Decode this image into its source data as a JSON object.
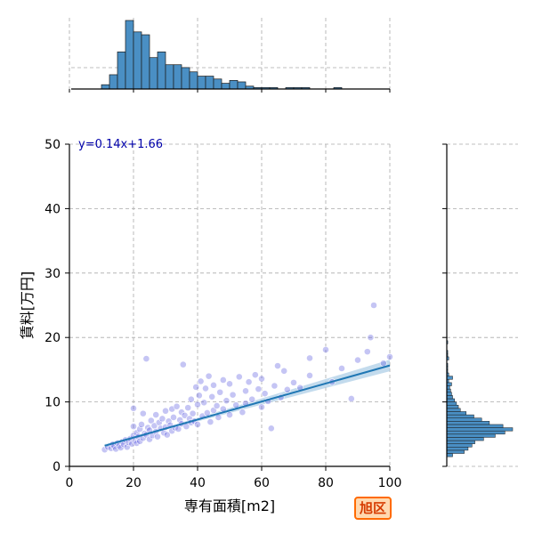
{
  "chart_data": {
    "type": "scatter",
    "xlabel": "専有面積[m2]",
    "ylabel": "賃料[万円]",
    "xlim": [
      0,
      100
    ],
    "ylim": [
      0,
      50
    ],
    "x_ticks": [
      "0",
      "20",
      "40",
      "60",
      "80",
      "100"
    ],
    "y_ticks": [
      "0",
      "10",
      "20",
      "30",
      "40",
      "50"
    ],
    "grid": true,
    "regression": {
      "label": "y=0.14x+1.66",
      "slope": 0.14,
      "intercept": 1.66,
      "x_range": [
        11,
        100
      ]
    },
    "points": [
      {
        "x": 11,
        "y": 2.6
      },
      {
        "x": 12,
        "y": 3.0
      },
      {
        "x": 13,
        "y": 2.8
      },
      {
        "x": 13.5,
        "y": 3.4
      },
      {
        "x": 14,
        "y": 3.1
      },
      {
        "x": 14.5,
        "y": 2.7
      },
      {
        "x": 15,
        "y": 3.6
      },
      {
        "x": 15.5,
        "y": 3.2
      },
      {
        "x": 16,
        "y": 2.9
      },
      {
        "x": 16.5,
        "y": 3.8
      },
      {
        "x": 17,
        "y": 3.4
      },
      {
        "x": 17.5,
        "y": 4.1
      },
      {
        "x": 18,
        "y": 3.0
      },
      {
        "x": 18.5,
        "y": 3.7
      },
      {
        "x": 19,
        "y": 4.3
      },
      {
        "x": 19.5,
        "y": 3.5
      },
      {
        "x": 20,
        "y": 4.8
      },
      {
        "x": 20,
        "y": 6.2
      },
      {
        "x": 20,
        "y": 9.0
      },
      {
        "x": 20.5,
        "y": 4.0
      },
      {
        "x": 21,
        "y": 5.2
      },
      {
        "x": 21,
        "y": 3.6
      },
      {
        "x": 21.5,
        "y": 4.6
      },
      {
        "x": 22,
        "y": 5.8
      },
      {
        "x": 22,
        "y": 3.9
      },
      {
        "x": 22.5,
        "y": 6.5
      },
      {
        "x": 23,
        "y": 4.4
      },
      {
        "x": 23,
        "y": 8.2
      },
      {
        "x": 23.5,
        "y": 5.1
      },
      {
        "x": 24,
        "y": 16.7
      },
      {
        "x": 24,
        "y": 4.9
      },
      {
        "x": 24.5,
        "y": 6.0
      },
      {
        "x": 25,
        "y": 4.2
      },
      {
        "x": 25,
        "y": 5.6
      },
      {
        "x": 25.5,
        "y": 7.1
      },
      {
        "x": 26,
        "y": 4.8
      },
      {
        "x": 26.5,
        "y": 6.3
      },
      {
        "x": 27,
        "y": 5.4
      },
      {
        "x": 27,
        "y": 8.0
      },
      {
        "x": 27.5,
        "y": 4.6
      },
      {
        "x": 28,
        "y": 6.8
      },
      {
        "x": 28.5,
        "y": 5.9
      },
      {
        "x": 29,
        "y": 7.4
      },
      {
        "x": 29.5,
        "y": 5.2
      },
      {
        "x": 30,
        "y": 6.1
      },
      {
        "x": 30,
        "y": 8.6
      },
      {
        "x": 30.5,
        "y": 4.9
      },
      {
        "x": 31,
        "y": 7.0
      },
      {
        "x": 31.5,
        "y": 6.4
      },
      {
        "x": 32,
        "y": 5.5
      },
      {
        "x": 32,
        "y": 8.9
      },
      {
        "x": 32.5,
        "y": 7.6
      },
      {
        "x": 33,
        "y": 6.0
      },
      {
        "x": 33.5,
        "y": 9.3
      },
      {
        "x": 34,
        "y": 5.8
      },
      {
        "x": 34.5,
        "y": 7.2
      },
      {
        "x": 35,
        "y": 8.4
      },
      {
        "x": 35,
        "y": 6.6
      },
      {
        "x": 35.5,
        "y": 15.8
      },
      {
        "x": 36,
        "y": 7.9
      },
      {
        "x": 36.5,
        "y": 6.2
      },
      {
        "x": 37,
        "y": 9.1
      },
      {
        "x": 37.5,
        "y": 7.4
      },
      {
        "x": 38,
        "y": 6.8
      },
      {
        "x": 38,
        "y": 10.4
      },
      {
        "x": 38.5,
        "y": 8.2
      },
      {
        "x": 39,
        "y": 7.0
      },
      {
        "x": 39.5,
        "y": 12.3
      },
      {
        "x": 40,
        "y": 9.6
      },
      {
        "x": 40,
        "y": 6.5
      },
      {
        "x": 40.5,
        "y": 11.0
      },
      {
        "x": 41,
        "y": 13.2
      },
      {
        "x": 41.5,
        "y": 7.8
      },
      {
        "x": 42,
        "y": 9.9
      },
      {
        "x": 42.5,
        "y": 12.1
      },
      {
        "x": 43,
        "y": 8.3
      },
      {
        "x": 43.5,
        "y": 14.0
      },
      {
        "x": 44,
        "y": 6.9
      },
      {
        "x": 44.5,
        "y": 10.8
      },
      {
        "x": 45,
        "y": 8.7
      },
      {
        "x": 45,
        "y": 12.6
      },
      {
        "x": 46,
        "y": 9.4
      },
      {
        "x": 46.5,
        "y": 7.6
      },
      {
        "x": 47,
        "y": 11.5
      },
      {
        "x": 48,
        "y": 8.9
      },
      {
        "x": 48,
        "y": 13.4
      },
      {
        "x": 49,
        "y": 10.2
      },
      {
        "x": 50,
        "y": 8.0
      },
      {
        "x": 50,
        "y": 12.8
      },
      {
        "x": 51,
        "y": 11.1
      },
      {
        "x": 52,
        "y": 9.5
      },
      {
        "x": 53,
        "y": 13.9
      },
      {
        "x": 54,
        "y": 8.4
      },
      {
        "x": 55,
        "y": 11.7
      },
      {
        "x": 55,
        "y": 9.8
      },
      {
        "x": 56,
        "y": 13.1
      },
      {
        "x": 57,
        "y": 10.4
      },
      {
        "x": 58,
        "y": 14.2
      },
      {
        "x": 59,
        "y": 12.0
      },
      {
        "x": 60,
        "y": 9.2
      },
      {
        "x": 60,
        "y": 13.6
      },
      {
        "x": 61,
        "y": 11.3
      },
      {
        "x": 62,
        "y": 10.1
      },
      {
        "x": 63,
        "y": 5.9
      },
      {
        "x": 64,
        "y": 12.5
      },
      {
        "x": 65,
        "y": 15.6
      },
      {
        "x": 66,
        "y": 10.7
      },
      {
        "x": 67,
        "y": 14.8
      },
      {
        "x": 68,
        "y": 11.9
      },
      {
        "x": 70,
        "y": 13.0
      },
      {
        "x": 72,
        "y": 12.2
      },
      {
        "x": 75,
        "y": 16.8
      },
      {
        "x": 75,
        "y": 14.1
      },
      {
        "x": 80,
        "y": 18.1
      },
      {
        "x": 82,
        "y": 13.1
      },
      {
        "x": 85,
        "y": 15.2
      },
      {
        "x": 88,
        "y": 10.5
      },
      {
        "x": 90,
        "y": 16.5
      },
      {
        "x": 93,
        "y": 17.8
      },
      {
        "x": 94,
        "y": 20.0
      },
      {
        "x": 95,
        "y": 25.0
      },
      {
        "x": 98,
        "y": 16.0
      },
      {
        "x": 100,
        "y": 17.0
      }
    ],
    "x_histogram": {
      "bin_start": 10,
      "bin_width": 2.5,
      "counts": [
        3,
        10,
        26,
        48,
        40,
        38,
        22,
        26,
        17,
        17,
        15,
        12,
        9,
        9,
        7,
        4,
        6,
        5,
        2,
        1,
        1,
        1,
        0,
        1,
        1,
        1,
        0,
        0,
        0,
        1
      ]
    },
    "y_histogram": {
      "bin_start": 1.5,
      "bin_width": 0.5,
      "counts": [
        6,
        18,
        22,
        26,
        29,
        38,
        50,
        60,
        68,
        58,
        44,
        36,
        28,
        20,
        14,
        12,
        10,
        8,
        6,
        5,
        4,
        3,
        5,
        2,
        6,
        2,
        1,
        1,
        1,
        0,
        2,
        1,
        1,
        0,
        0,
        1
      ]
    }
  },
  "badge": {
    "label": "旭区"
  },
  "colors": {
    "bar": "#4a8fc4",
    "point": "#5a5adf",
    "line": "#1f77b4",
    "ci": "#a9cce6",
    "annot": "#0000aa"
  }
}
